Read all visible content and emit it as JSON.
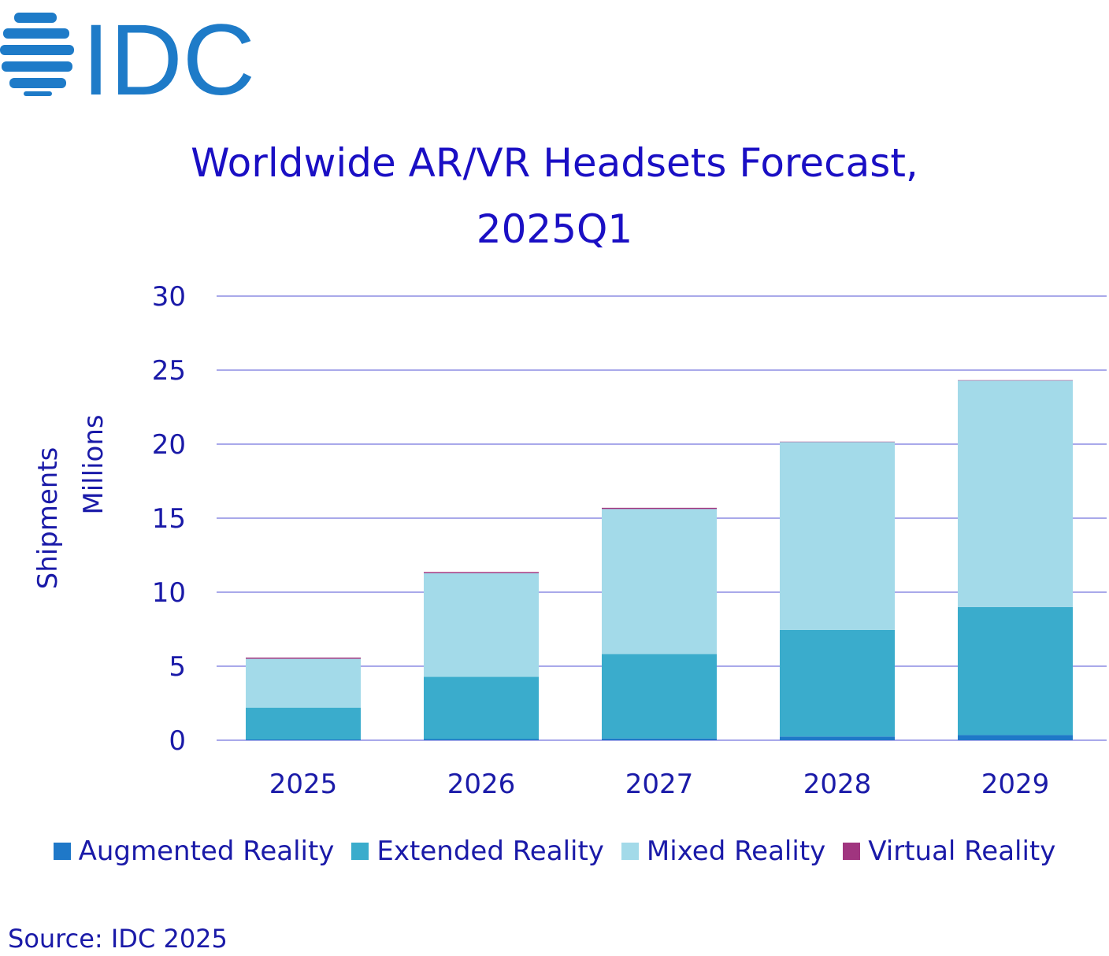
{
  "logo": {
    "text": "IDC",
    "color": "#1e7bc8"
  },
  "chart_data": {
    "type": "bar",
    "stacked": true,
    "title_lines": [
      "Worldwide AR/VR Headsets Forecast,",
      "2025Q1"
    ],
    "xlabel": "",
    "ylabel": [
      "Shipments",
      "Millions"
    ],
    "categories": [
      "2025",
      "2026",
      "2027",
      "2028",
      "2029"
    ],
    "yticks": [
      0,
      5,
      10,
      15,
      20,
      25,
      30
    ],
    "ylim": [
      0,
      30
    ],
    "grid": true,
    "legend_position": "bottom",
    "series": [
      {
        "name": "Augmented Reality",
        "color": "#1f78c8",
        "values": [
          0.05,
          0.08,
          0.12,
          0.25,
          0.35
        ]
      },
      {
        "name": "Extended Reality",
        "color": "#3aaccc",
        "values": [
          2.15,
          4.2,
          5.7,
          7.2,
          8.65
        ]
      },
      {
        "name": "Mixed Reality",
        "color": "#a3dae9",
        "values": [
          3.3,
          7.0,
          9.8,
          12.7,
          15.3
        ]
      },
      {
        "name": "Virtual Reality",
        "color": "#a0357f",
        "values": [
          0.08,
          0.08,
          0.08,
          0.02,
          0.02
        ]
      }
    ]
  },
  "colors": {
    "gridline": "#a9a9ea",
    "text": "#1a1aa8",
    "title": "#1a0fc4"
  },
  "source": "Source: IDC 2025"
}
